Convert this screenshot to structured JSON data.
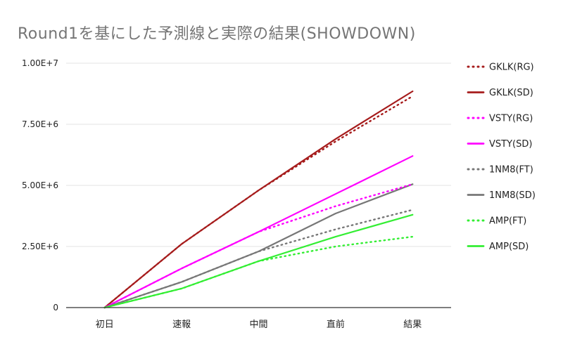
{
  "chart_data": {
    "type": "line",
    "title": "Round1を基にした予測線と実際の結果(SHOWDOWN)",
    "xlabel": "",
    "ylabel": "",
    "categories": [
      "初日",
      "速報",
      "中間",
      "直前",
      "結果"
    ],
    "ylim": [
      0,
      10000000
    ],
    "yticks": [
      0,
      2500000,
      5000000,
      7500000,
      10000000
    ],
    "ytick_labels": [
      "0",
      "2.50E+6",
      "5.00E+6",
      "7.50E+6",
      "1.00E+7"
    ],
    "grid": true,
    "legend_position": "right",
    "series": [
      {
        "name": "GKLK(RG)",
        "color": "#a61c1c",
        "dashed": true,
        "values": [
          0,
          2600000,
          4800000,
          6800000,
          8650000
        ]
      },
      {
        "name": "GKLK(SD)",
        "color": "#a61c1c",
        "dashed": false,
        "values": [
          0,
          2600000,
          4800000,
          6900000,
          8850000
        ]
      },
      {
        "name": "VSTY(RG)",
        "color": "#ff00ff",
        "dashed": true,
        "values": [
          0,
          1600000,
          3100000,
          4150000,
          5050000
        ]
      },
      {
        "name": "VSTY(SD)",
        "color": "#ff00ff",
        "dashed": false,
        "values": [
          0,
          1600000,
          3100000,
          4650000,
          6200000
        ]
      },
      {
        "name": "1NM8(FT)",
        "color": "#777777",
        "dashed": true,
        "values": [
          0,
          1050000,
          2300000,
          3200000,
          4000000
        ]
      },
      {
        "name": "1NM8(SD)",
        "color": "#777777",
        "dashed": false,
        "values": [
          0,
          1050000,
          2300000,
          3850000,
          5050000
        ]
      },
      {
        "name": "AMP(FT)",
        "color": "#33ee33",
        "dashed": true,
        "values": [
          0,
          780000,
          1900000,
          2500000,
          2900000
        ]
      },
      {
        "name": "AMP(SD)",
        "color": "#33ee33",
        "dashed": false,
        "values": [
          0,
          780000,
          1900000,
          2900000,
          3800000
        ]
      }
    ]
  }
}
